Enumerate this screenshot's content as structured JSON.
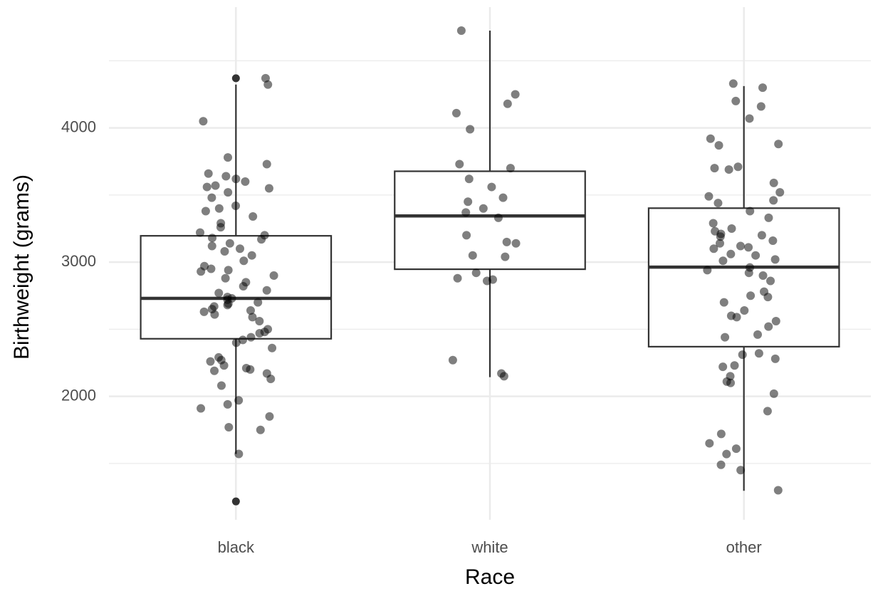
{
  "chart_data": {
    "type": "box",
    "x_label": "Race",
    "y_label": "Birthweight (grams)",
    "categories": [
      "black",
      "white",
      "other"
    ],
    "ylim": [
      1080,
      4900
    ],
    "yticks": [
      2000,
      3000,
      4000
    ],
    "minor_yticks": [
      1500,
      2500,
      3500,
      4500
    ],
    "grid": true,
    "box_color": "#333333",
    "point_color": "#000000",
    "boxes": [
      {
        "whisker_low": 1571,
        "q1": 2429,
        "median": 2730,
        "q3": 3196,
        "whisker_high": 4323,
        "outliers": [
          4370,
          1217
        ]
      },
      {
        "whisker_low": 2143,
        "q1": 2947,
        "median": 3344,
        "q3": 3677,
        "whisker_high": 4725
      },
      {
        "whisker_low": 1296,
        "q1": 2370,
        "median": 2963,
        "q3": 3402,
        "whisker_high": 4312
      }
    ],
    "points": [
      [
        4370,
        4323,
        4050,
        3780,
        3730,
        3660,
        3640,
        3620,
        3600,
        3570,
        3560,
        3550,
        3520,
        3480,
        3420,
        3400,
        3380,
        3340,
        3290,
        3260,
        3220,
        3200,
        3180,
        3170,
        3140,
        3120,
        3100,
        3080,
        3050,
        3010,
        2970,
        2950,
        2940,
        2930,
        2900,
        2880,
        2850,
        2820,
        2790,
        2770,
        2740,
        2730,
        2720,
        2700,
        2690,
        2680,
        2670,
        2650,
        2640,
        2630,
        2610,
        2590,
        2560,
        2500,
        2480,
        2470,
        2440,
        2420,
        2400,
        2360,
        2290,
        2270,
        2260,
        2230,
        2210,
        2200,
        2190,
        2170,
        2130,
        2080,
        1970,
        1940,
        1910,
        1850,
        1770,
        1750,
        1571
      ],
      [
        4725,
        4250,
        4180,
        4110,
        3990,
        3730,
        3700,
        3620,
        3560,
        3480,
        3450,
        3400,
        3370,
        3330,
        3200,
        3150,
        3140,
        3050,
        3040,
        2920,
        2880,
        2870,
        2860,
        2270,
        2170,
        2150
      ],
      [
        4330,
        4300,
        4200,
        4160,
        4070,
        3920,
        3870,
        3880,
        3710,
        3700,
        3690,
        3590,
        3520,
        3490,
        3460,
        3440,
        3380,
        3330,
        3290,
        3250,
        3230,
        3210,
        3200,
        3190,
        3160,
        3140,
        3120,
        3110,
        3100,
        3060,
        3050,
        3020,
        3010,
        2960,
        2940,
        2920,
        2900,
        2860,
        2780,
        2750,
        2740,
        2700,
        2640,
        2600,
        2590,
        2560,
        2520,
        2460,
        2440,
        2320,
        2310,
        2280,
        2230,
        2220,
        2150,
        2110,
        2100,
        2020,
        1890,
        1720,
        1650,
        1610,
        1570,
        1490,
        1450,
        1300
      ]
    ]
  }
}
